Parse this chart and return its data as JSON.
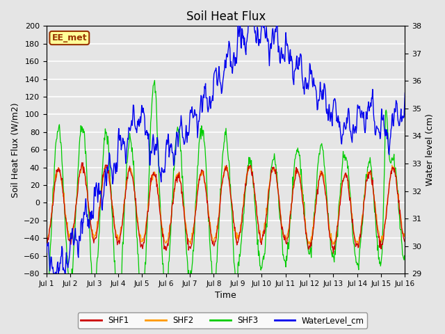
{
  "title": "Soil Heat Flux",
  "xlabel": "Time",
  "ylabel_left": "Soil Heat Flux (W/m2)",
  "ylabel_right": "Water level (cm)",
  "ylim_left": [
    -80,
    200
  ],
  "ylim_right": [
    29.0,
    38.0
  ],
  "yticks_left": [
    -80,
    -60,
    -40,
    -20,
    0,
    20,
    40,
    60,
    80,
    100,
    120,
    140,
    160,
    180,
    200
  ],
  "yticks_right": [
    29.0,
    30.0,
    31.0,
    32.0,
    33.0,
    34.0,
    35.0,
    36.0,
    37.0,
    38.0
  ],
  "xtick_labels": [
    "Jul 1",
    "Jul 2",
    "Jul 3",
    "Jul 4",
    "Jul 5",
    "Jul 6",
    "Jul 7",
    "Jul 8",
    "Jul 9",
    "Jul 10",
    "Jul 11",
    "Jul 12",
    "Jul 13",
    "Jul 14",
    "Jul 15",
    "Jul 16"
  ],
  "background_color": "#e5e5e5",
  "plot_bg_color": "#e5e5e5",
  "grid_color": "#ffffff",
  "colors": {
    "SHF1": "#cc0000",
    "SHF2": "#ff9900",
    "SHF3": "#00cc00",
    "WaterLevel_cm": "#0000ee"
  },
  "legend_label": "EE_met",
  "legend_bg": "#ffff99",
  "legend_border": "#993300"
}
